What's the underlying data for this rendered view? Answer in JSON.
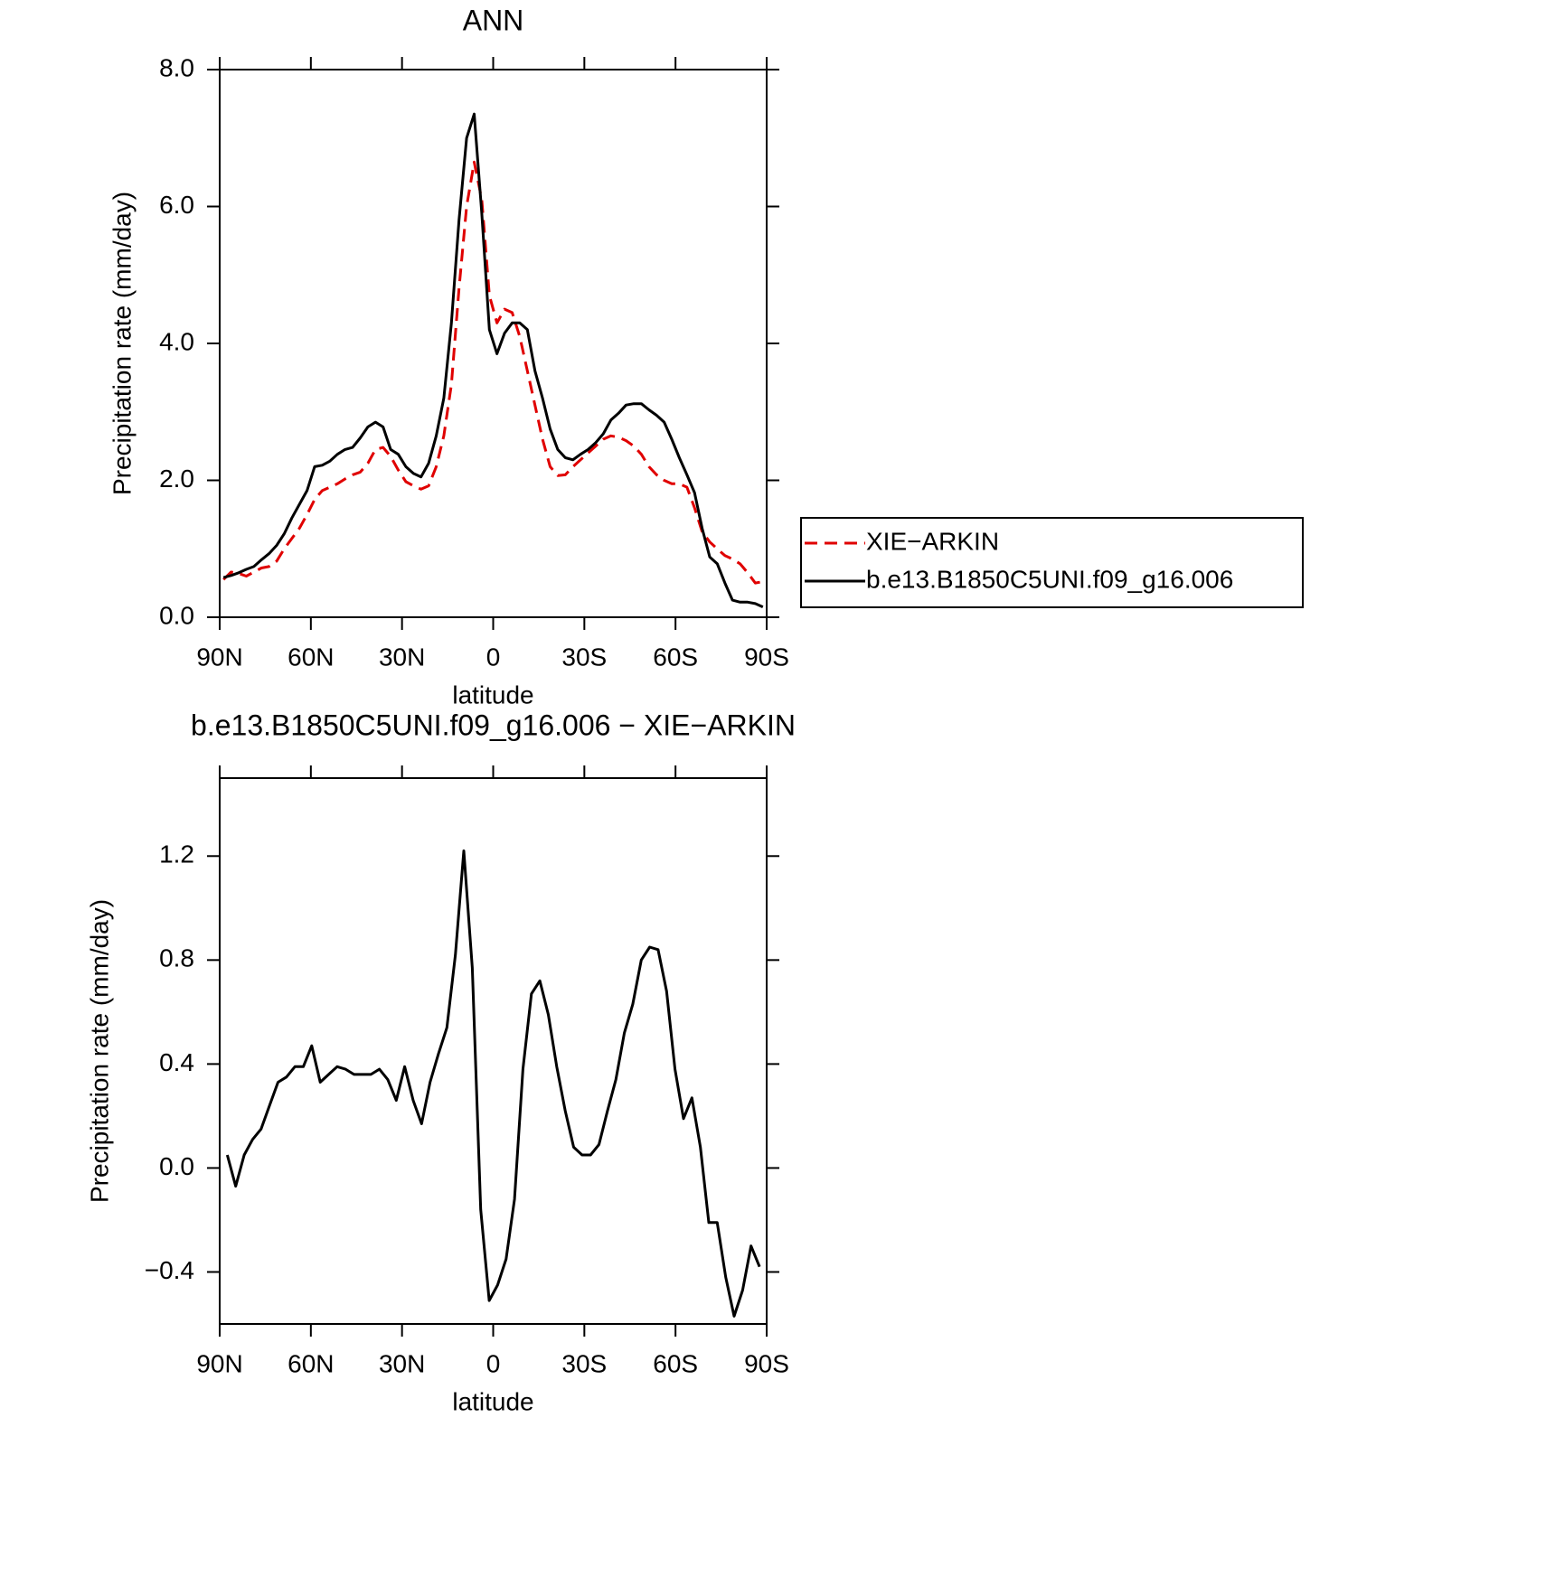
{
  "chart_data": [
    {
      "type": "line",
      "title": "ANN",
      "xlabel": "latitude",
      "ylabel": "Precipitation rate (mm/day)",
      "xlim": [
        90,
        -90
      ],
      "xticks": [
        {
          "value": 90,
          "label": "90N"
        },
        {
          "value": 60,
          "label": "60N"
        },
        {
          "value": 30,
          "label": "30N"
        },
        0,
        {
          "value": -30,
          "label": "30S"
        },
        {
          "value": -60,
          "label": "60S"
        },
        {
          "value": -90,
          "label": "90S"
        }
      ],
      "ylim": [
        0,
        8
      ],
      "yticks": [
        {
          "value": 0,
          "label": "0.0"
        },
        {
          "value": 2,
          "label": "2.0"
        },
        {
          "value": 4,
          "label": "4.0"
        },
        {
          "value": 6,
          "label": "6.0"
        },
        {
          "value": 8,
          "label": "8.0"
        }
      ],
      "legend": "right",
      "x": [
        88.75,
        86.25,
        83.75,
        81.25,
        78.75,
        76.25,
        73.75,
        71.25,
        68.75,
        66.25,
        63.75,
        61.25,
        58.75,
        56.25,
        53.75,
        51.25,
        48.75,
        46.25,
        43.75,
        41.25,
        38.75,
        36.25,
        33.75,
        31.25,
        28.75,
        26.25,
        23.75,
        21.25,
        18.75,
        16.25,
        13.75,
        11.25,
        8.75,
        6.25,
        3.75,
        1.25,
        -1.25,
        -3.75,
        -6.25,
        -8.75,
        -11.25,
        -13.75,
        -16.25,
        -18.75,
        -21.25,
        -23.75,
        -26.25,
        -28.75,
        -31.25,
        -33.75,
        -36.25,
        -38.75,
        -41.25,
        -43.75,
        -46.25,
        -48.75,
        -51.25,
        -53.75,
        -56.25,
        -58.75,
        -61.25,
        -63.75,
        -66.25,
        -68.75,
        -71.25,
        -73.75,
        -76.25,
        -78.75,
        -81.25,
        -83.75,
        -86.25,
        -88.75
      ],
      "series": [
        {
          "name": "XIE−ARKIN",
          "color": "#e00000",
          "style": "dashed",
          "values": [
            0.55,
            0.66,
            0.64,
            0.6,
            0.66,
            0.72,
            0.74,
            0.82,
            1.0,
            1.15,
            1.3,
            1.5,
            1.72,
            1.85,
            1.9,
            1.95,
            2.02,
            2.08,
            2.12,
            2.25,
            2.45,
            2.48,
            2.35,
            2.15,
            1.98,
            1.92,
            1.87,
            1.92,
            2.2,
            2.65,
            3.4,
            4.8,
            6.0,
            6.65,
            6.1,
            4.7,
            4.3,
            4.5,
            4.45,
            4.1,
            3.6,
            3.1,
            2.6,
            2.2,
            2.07,
            2.08,
            2.2,
            2.3,
            2.4,
            2.5,
            2.6,
            2.65,
            2.63,
            2.58,
            2.5,
            2.38,
            2.2,
            2.08,
            2.0,
            1.95,
            1.95,
            1.9,
            1.6,
            1.25,
            1.1,
            1.0,
            0.9,
            0.85,
            0.78,
            0.65,
            0.5,
            0.52
          ]
        },
        {
          "name": "b.e13.B1850C5UNI.f09_g16.006",
          "color": "#000000",
          "style": "solid",
          "values": [
            0.58,
            0.61,
            0.65,
            0.7,
            0.74,
            0.84,
            0.93,
            1.05,
            1.22,
            1.45,
            1.65,
            1.85,
            2.2,
            2.22,
            2.28,
            2.38,
            2.45,
            2.48,
            2.62,
            2.78,
            2.85,
            2.78,
            2.45,
            2.38,
            2.2,
            2.1,
            2.05,
            2.25,
            2.65,
            3.2,
            4.3,
            5.8,
            7.0,
            7.35,
            5.9,
            4.2,
            3.85,
            4.15,
            4.3,
            4.3,
            4.2,
            3.6,
            3.2,
            2.75,
            2.45,
            2.33,
            2.3,
            2.38,
            2.45,
            2.55,
            2.68,
            2.88,
            2.98,
            3.1,
            3.12,
            3.12,
            3.03,
            2.95,
            2.85,
            2.6,
            2.33,
            2.08,
            1.82,
            1.3,
            0.88,
            0.78,
            0.5,
            0.25,
            0.22,
            0.22,
            0.2,
            0.15
          ]
        }
      ]
    },
    {
      "type": "line",
      "title": "b.e13.B1850C5UNI.f09_g16.006 − XIE−ARKIN",
      "xlabel": "latitude",
      "ylabel": "Precipitation rate (mm/day)",
      "xlim": [
        90,
        -90
      ],
      "xticks": [
        {
          "value": 90,
          "label": "90N"
        },
        {
          "value": 60,
          "label": "60N"
        },
        {
          "value": 30,
          "label": "30N"
        },
        0,
        {
          "value": -30,
          "label": "30S"
        },
        {
          "value": -60,
          "label": "60S"
        },
        {
          "value": -90,
          "label": "90S"
        }
      ],
      "ylim": [
        -0.6,
        1.5
      ],
      "yticks": [
        {
          "value": -0.4,
          "label": "−0.4"
        },
        {
          "value": 0,
          "label": "0.0"
        },
        0.4,
        0.8,
        1.2
      ],
      "color": "#000000",
      "x": [
        87.5,
        84.72,
        81.94,
        79.16,
        76.38,
        73.6,
        70.82,
        68.04,
        65.26,
        62.48,
        59.7,
        56.92,
        54.14,
        51.36,
        48.58,
        45.8,
        43.02,
        40.24,
        37.46,
        34.68,
        31.9,
        29.12,
        26.34,
        23.56,
        20.78,
        18.0,
        15.22,
        12.44,
        9.66,
        6.88,
        4.1,
        1.32,
        -1.46,
        -4.24,
        -7.02,
        -9.8,
        -12.58,
        -15.36,
        -18.14,
        -20.92,
        -23.7,
        -26.48,
        -29.26,
        -32.04,
        -34.82,
        -37.6,
        -40.38,
        -43.16,
        -45.94,
        -48.72,
        -51.5,
        -54.28,
        -57.06,
        -59.84,
        -62.62,
        -65.4,
        -68.18,
        -70.96,
        -73.74,
        -76.52,
        -79.3,
        -82.08,
        -84.86,
        -87.64
      ],
      "values": [
        0.05,
        -0.07,
        0.05,
        0.11,
        0.15,
        0.24,
        0.33,
        0.35,
        0.39,
        0.39,
        0.47,
        0.33,
        0.36,
        0.39,
        0.38,
        0.36,
        0.36,
        0.36,
        0.38,
        0.34,
        0.26,
        0.39,
        0.26,
        0.17,
        0.33,
        0.44,
        0.54,
        0.82,
        1.22,
        0.77,
        -0.16,
        -0.51,
        -0.45,
        -0.35,
        -0.12,
        0.38,
        0.67,
        0.72,
        0.59,
        0.39,
        0.22,
        0.08,
        0.05,
        0.05,
        0.09,
        0.22,
        0.34,
        0.52,
        0.63,
        0.8,
        0.85,
        0.84,
        0.68,
        0.38,
        0.19,
        0.27,
        0.08,
        -0.21,
        -0.21,
        -0.42,
        -0.57,
        -0.47,
        -0.3,
        -0.38
      ]
    }
  ]
}
